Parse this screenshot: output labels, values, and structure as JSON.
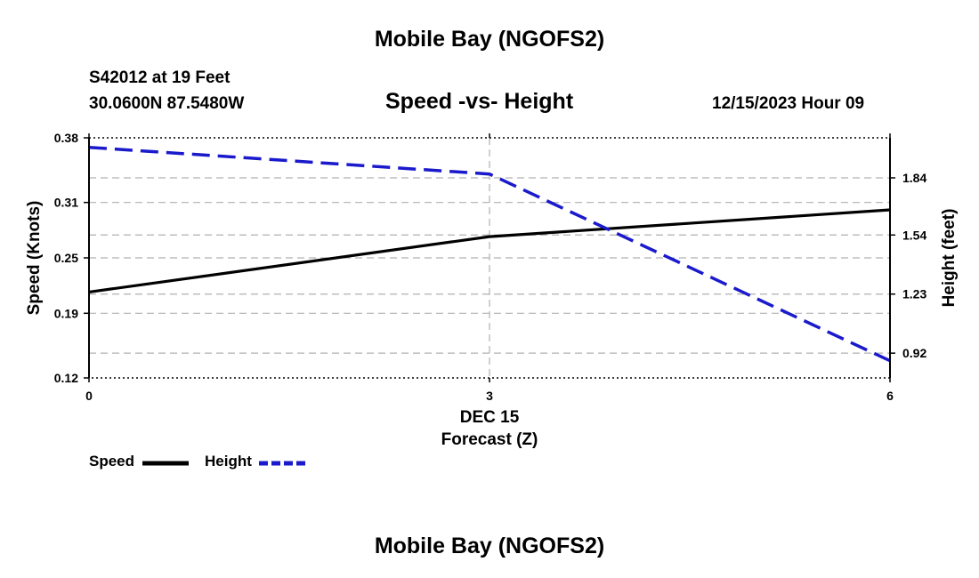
{
  "title": "Mobile Bay (NGOFS2)",
  "footer_title": "Mobile Bay (NGOFS2)",
  "station": "S42012 at 19 Feet",
  "location": "30.0600N  87.5480W",
  "subtitle": "Speed -vs- Height",
  "forecast_time": "12/15/2023 Hour 09",
  "x_date_label": "DEC 15",
  "legend": {
    "speed_label": "Speed",
    "height_label": "Height"
  },
  "colors": {
    "speed": "#000000",
    "height": "#1a1acc",
    "grid": "#b0b0b0"
  },
  "chart_data": {
    "type": "line",
    "title": "Speed -vs- Height",
    "xlabel": "Forecast (Z)",
    "ylabel": "Speed (Knots)",
    "y2label": "Height (feet)",
    "xlim": [
      0,
      6
    ],
    "ylim": [
      0.12,
      0.38
    ],
    "y2lim": [
      0.79,
      2.05
    ],
    "x_ticks": [
      0,
      3,
      6
    ],
    "y_ticks": [
      "0.12",
      "0.19",
      "0.25",
      "0.31",
      "0.38"
    ],
    "y2_ticks": [
      "0.92",
      "1.23",
      "1.54",
      "1.84"
    ],
    "grid": true,
    "legend_position": "bottom-left",
    "series": [
      {
        "name": "Speed",
        "axis": "left",
        "style": "solid",
        "x": [
          0,
          3,
          6
        ],
        "values": [
          0.213,
          0.273,
          0.302
        ]
      },
      {
        "name": "Height",
        "axis": "right",
        "style": "dashed",
        "x": [
          0,
          3,
          6
        ],
        "values": [
          2.0,
          1.86,
          0.88
        ]
      }
    ]
  }
}
